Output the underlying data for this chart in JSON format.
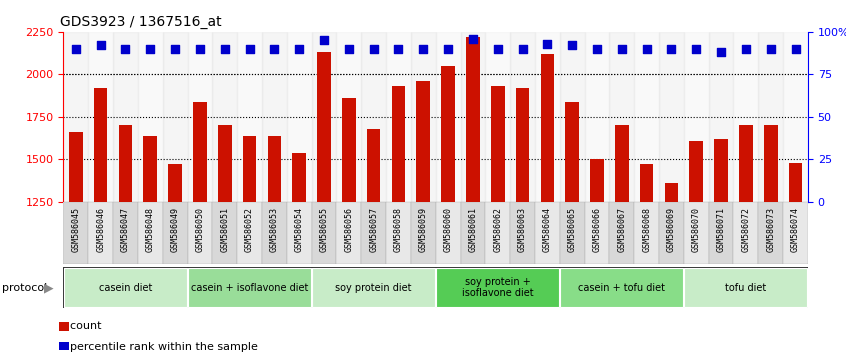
{
  "title": "GDS3923 / 1367516_at",
  "samples": [
    "GSM586045",
    "GSM586046",
    "GSM586047",
    "GSM586048",
    "GSM586049",
    "GSM586050",
    "GSM586051",
    "GSM586052",
    "GSM586053",
    "GSM586054",
    "GSM586055",
    "GSM586056",
    "GSM586057",
    "GSM586058",
    "GSM586059",
    "GSM586060",
    "GSM586061",
    "GSM586062",
    "GSM586063",
    "GSM586064",
    "GSM586065",
    "GSM586066",
    "GSM586067",
    "GSM586068",
    "GSM586069",
    "GSM586070",
    "GSM586071",
    "GSM586072",
    "GSM586073",
    "GSM586074"
  ],
  "counts": [
    1660,
    1920,
    1700,
    1640,
    1470,
    1840,
    1700,
    1640,
    1640,
    1540,
    2130,
    1860,
    1680,
    1930,
    1960,
    2050,
    2220,
    1930,
    1920,
    2120,
    1840,
    1500,
    1700,
    1470,
    1360,
    1610,
    1620,
    1700,
    1700,
    1480
  ],
  "percentile_ranks": [
    90,
    92,
    90,
    90,
    90,
    90,
    90,
    90,
    90,
    90,
    95,
    90,
    90,
    90,
    90,
    90,
    96,
    90,
    90,
    93,
    92,
    90,
    90,
    90,
    90,
    90,
    88,
    90,
    90,
    90
  ],
  "bar_color": "#cc1100",
  "dot_color": "#0000cc",
  "ylim_left": [
    1250,
    2250
  ],
  "ylim_right": [
    0,
    100
  ],
  "yticks_left": [
    1250,
    1500,
    1750,
    2000,
    2250
  ],
  "yticks_right": [
    0,
    25,
    50,
    75,
    100
  ],
  "ytick_labels_right": [
    "0",
    "25",
    "50",
    "75",
    "100%"
  ],
  "grid_values": [
    1500,
    1750,
    2000
  ],
  "protocols": [
    {
      "label": "casein diet",
      "start": 0,
      "end": 5,
      "color": "#c8ecc8"
    },
    {
      "label": "casein + isoflavone diet",
      "start": 5,
      "end": 10,
      "color": "#99dd99"
    },
    {
      "label": "soy protein diet",
      "start": 10,
      "end": 15,
      "color": "#c8ecc8"
    },
    {
      "label": "soy protein +\nisoflavone diet",
      "start": 15,
      "end": 20,
      "color": "#55cc55"
    },
    {
      "label": "casein + tofu diet",
      "start": 20,
      "end": 25,
      "color": "#88dd88"
    },
    {
      "label": "tofu diet",
      "start": 25,
      "end": 30,
      "color": "#c8ecc8"
    }
  ],
  "protocol_label": "protocol",
  "legend_count_label": "count",
  "legend_pct_label": "percentile rank within the sample",
  "bar_width": 0.55,
  "dot_size": 40,
  "dot_marker": "s",
  "background_color": "#ffffff",
  "plot_bg_color": "#ffffff",
  "label_bg_color": "#d8d8d8",
  "label_bg_color2": "#e8e8e8"
}
